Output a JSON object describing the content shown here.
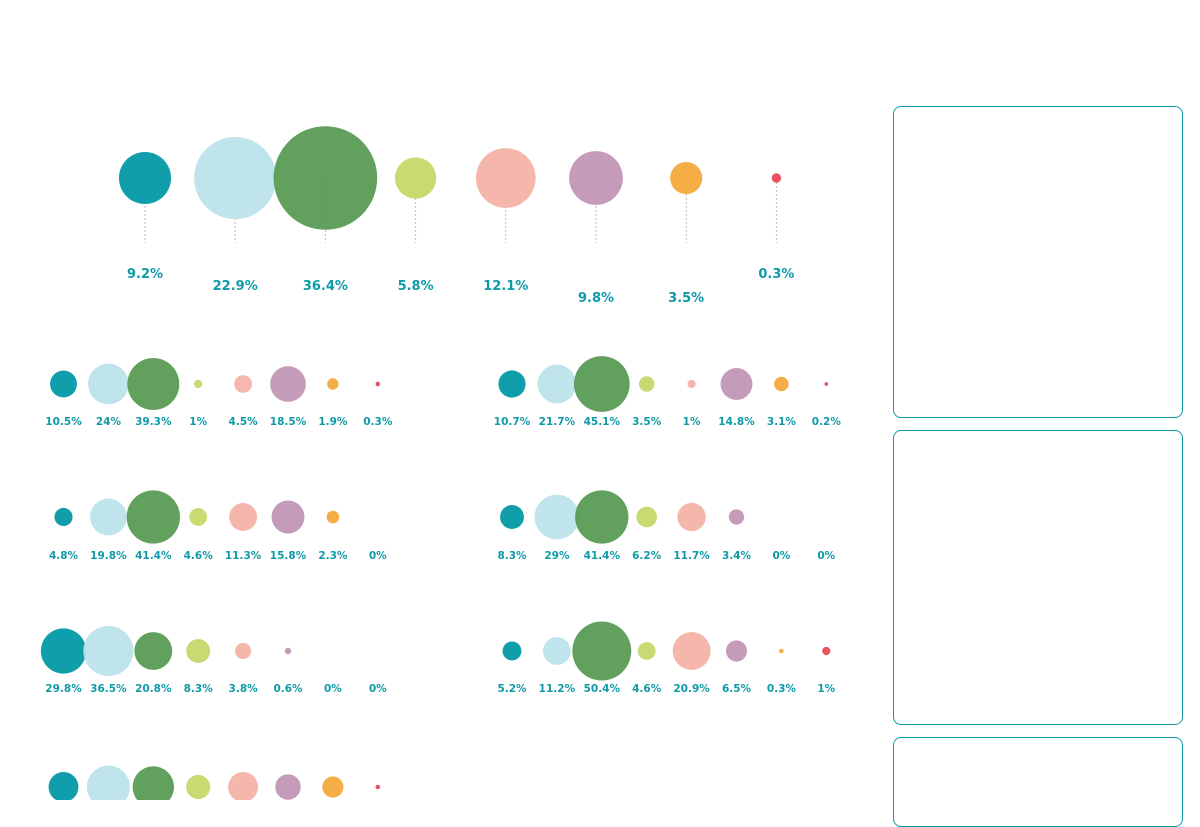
{
  "colors": {
    "accent": "#0e9aa7",
    "categories": [
      "#0399a7",
      "#bde3ea",
      "#5a9b55",
      "#c6d86c",
      "#f4b3a8",
      "#c197b5",
      "#f4a93c",
      "#e64a55"
    ],
    "connector": "#bbbbbb"
  },
  "chart_data": [
    {
      "type": "bubble",
      "title": "",
      "values": [
        9.2,
        22.9,
        36.4,
        5.8,
        12.1,
        9.8,
        3.5,
        0.3
      ],
      "labels": [
        "9.2%",
        "22.9%",
        "36.4%",
        "5.8%",
        "12.1%",
        "9.8%",
        "3.5%",
        "0.3%"
      ]
    },
    {
      "type": "bubble",
      "values": [
        10.5,
        24,
        39.3,
        1,
        4.5,
        18.5,
        1.9,
        0.3
      ],
      "labels": [
        "10.5%",
        "24%",
        "39.3%",
        "1%",
        "4.5%",
        "18.5%",
        "1.9%",
        "0.3%"
      ]
    },
    {
      "type": "bubble",
      "values": [
        10.7,
        21.7,
        45.1,
        3.5,
        1,
        14.8,
        3.1,
        0.2
      ],
      "labels": [
        "10.7%",
        "21.7%",
        "45.1%",
        "3.5%",
        "1%",
        "14.8%",
        "3.1%",
        "0.2%"
      ]
    },
    {
      "type": "bubble",
      "values": [
        4.8,
        19.8,
        41.4,
        4.6,
        11.3,
        15.8,
        2.3,
        0
      ],
      "labels": [
        "4.8%",
        "19.8%",
        "41.4%",
        "4.6%",
        "11.3%",
        "15.8%",
        "2.3%",
        "0%"
      ]
    },
    {
      "type": "bubble",
      "values": [
        8.3,
        29,
        41.4,
        6.2,
        11.7,
        3.4,
        0,
        0
      ],
      "labels": [
        "8.3%",
        "29%",
        "41.4%",
        "6.2%",
        "11.7%",
        "3.4%",
        "0%",
        "0%"
      ]
    },
    {
      "type": "bubble",
      "values": [
        29.8,
        36.5,
        20.8,
        8.3,
        3.8,
        0.6,
        0,
        0
      ],
      "labels": [
        "29.8%",
        "36.5%",
        "20.8%",
        "8.3%",
        "3.8%",
        "0.6%",
        "0%",
        "0%"
      ]
    },
    {
      "type": "bubble",
      "values": [
        5.2,
        11.2,
        50.4,
        4.6,
        20.9,
        6.5,
        0.3,
        1
      ],
      "labels": [
        "5.2%",
        "11.2%",
        "50.4%",
        "4.6%",
        "20.9%",
        "6.5%",
        "0.3%",
        "1%"
      ]
    },
    {
      "type": "bubble",
      "values": [
        13,
        27,
        25,
        8.5,
        13,
        9.5,
        6.5,
        0.3
      ],
      "labels": []
    }
  ]
}
